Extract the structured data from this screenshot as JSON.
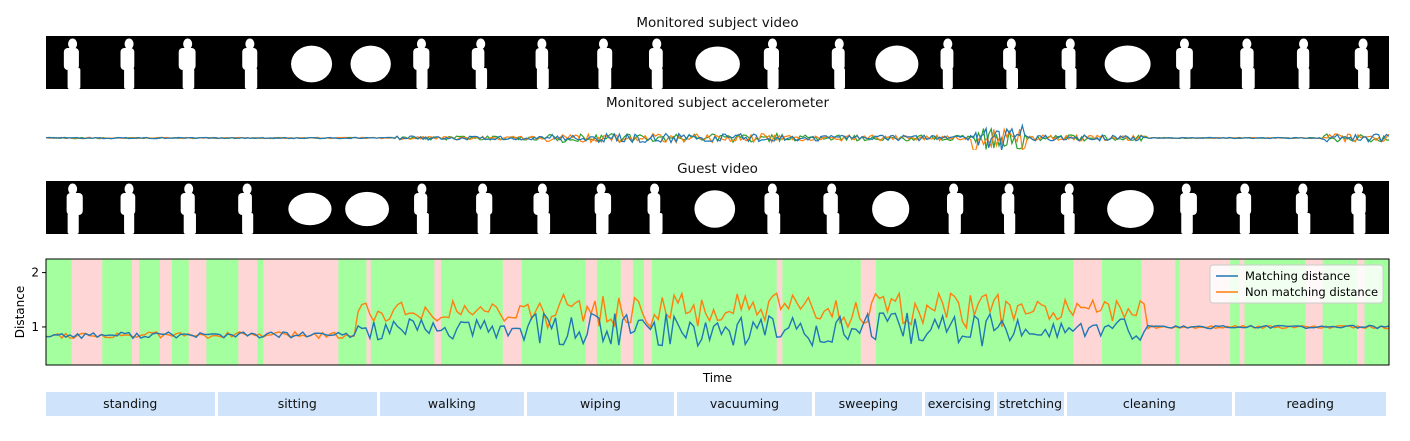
{
  "titles": {
    "video": "Monitored subject video",
    "accel": "Monitored subject accelerometer",
    "guest": "Guest video"
  },
  "activities": [
    {
      "label": "standing",
      "start": 0.0,
      "end": 0.1277
    },
    {
      "label": "sitting",
      "start": 0.1277,
      "end": 0.2487
    },
    {
      "label": "walking",
      "start": 0.2487,
      "end": 0.358
    },
    {
      "label": "wiping",
      "start": 0.358,
      "end": 0.4699
    },
    {
      "label": "vacuuming",
      "start": 0.4699,
      "end": 0.5725
    },
    {
      "label": "sweeping",
      "start": 0.5725,
      "end": 0.6544
    },
    {
      "label": "exercising",
      "start": 0.6544,
      "end": 0.7081
    },
    {
      "label": "stretching",
      "start": 0.7081,
      "end": 0.7603
    },
    {
      "label": "cleaning",
      "start": 0.7603,
      "end": 0.885
    },
    {
      "label": "reading",
      "start": 0.885,
      "end": 1.0
    }
  ],
  "colors": {
    "matching": "#1f77b4",
    "non_matching": "#ff7f0e",
    "accel_x": "#1f77b4",
    "accel_y": "#ff7f0e",
    "accel_z": "#2ca02c",
    "correct_bg": "#a4ff9e",
    "wrong_bg": "#ffd6d6",
    "activity_box": "#cfe4fb"
  },
  "chart_data": {
    "type": "line",
    "xlabel": "Time",
    "ylabel": "Distance",
    "yticks": [
      1,
      2
    ],
    "ylim": [
      0.3,
      2.25
    ],
    "legend_position": "top-right",
    "series": [
      {
        "name": "Matching distance"
      },
      {
        "name": "Non matching distance"
      }
    ]
  }
}
